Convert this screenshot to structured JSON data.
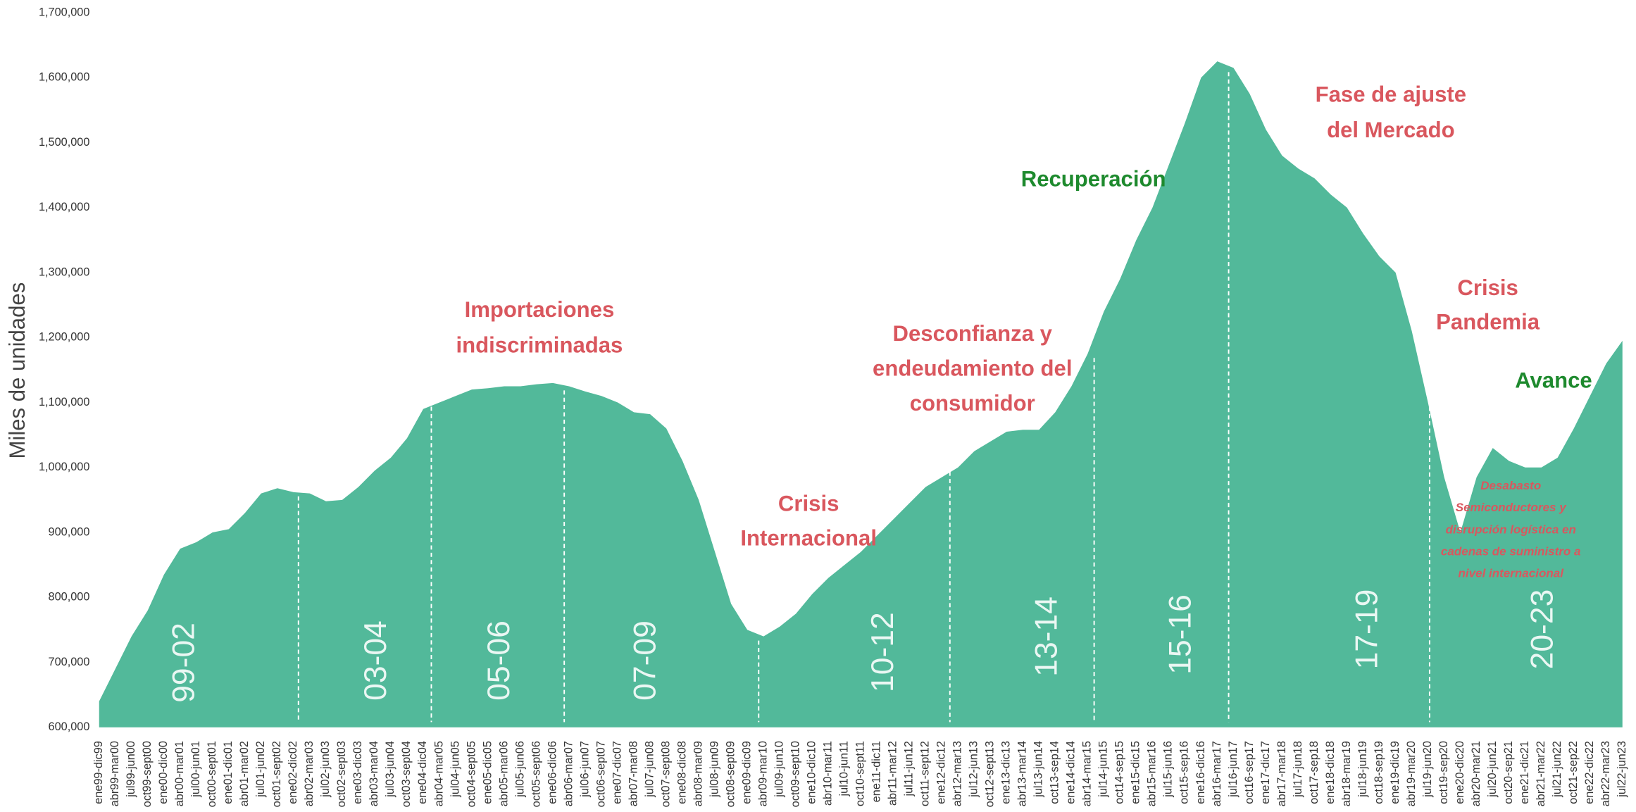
{
  "chart_data": {
    "type": "area",
    "y_label": "Miles de unidades",
    "color": "#52b99a",
    "categories": [
      "ene99-dic99",
      "abr99-mar00",
      "jul99-jun00",
      "oct99-sept00",
      "ene00-dic00",
      "abr00-mar01",
      "jul00-jun01",
      "oct00-sept01",
      "ene01-dic01",
      "abr01-mar02",
      "jul01-jun02",
      "oct01-sept02",
      "ene02-dic02",
      "abr02-mar03",
      "jul02-jun03",
      "oct02-sept03",
      "ene03-dic03",
      "abr03-mar04",
      "jul03-jun04",
      "oct03-sept04",
      "ene04-dic04",
      "abr04-mar05",
      "jul04-jun05",
      "oct04-sept05",
      "ene05-dic05",
      "abr05-mar06",
      "jul05-jun06",
      "oct05-sept06",
      "ene06-dic06",
      "abr06-mar07",
      "jul06-jun07",
      "oct06-sept07",
      "ene07-dic07",
      "abr07-mar08",
      "jul07-jun08",
      "oct07-sept08",
      "ene08-dic08",
      "abr08-mar09",
      "jul08-jun09",
      "oct08-sept09",
      "ene09-dic09",
      "abr09-mar10",
      "jul09-jun10",
      "oct09-sept10",
      "ene10-dic10",
      "abr10-mar11",
      "jul10-jun11",
      "oct10-sept11",
      "ene11-dic11",
      "abr11-mar12",
      "jul11-jun12",
      "oct11-sept12",
      "ene12-dic12",
      "abr12-mar13",
      "jul12-jun13",
      "oct12-sept13",
      "ene13-dic13",
      "abr13-mar14",
      "jul13-jun14",
      "oct13-sep14",
      "ene14-dic14",
      "abr14-mar15",
      "jul14-jun15",
      "oct14-sep15",
      "ene15-dic15",
      "abr15-mar16",
      "jul15-jun16",
      "oct15-sep16",
      "ene16-dic16",
      "abr16-mar17",
      "jul16-jun17",
      "oct16-sep17",
      "ene17-dic17",
      "abr17-mar18",
      "jul17-jun18",
      "oct17-sep18",
      "ene18-dic18",
      "abr18-mar19",
      "jul18-jun19",
      "oct18-sep19",
      "ene19-dic19",
      "abr19-mar20",
      "jul19-jun20",
      "oct19-sep20",
      "ene20-dic20",
      "abr20-mar21",
      "jul20-jun21",
      "oct20-sep21",
      "ene21-dic21",
      "abr21-mar22",
      "jul21-jun22",
      "oct21-sep22",
      "ene22-dic22",
      "abr22-mar23",
      "jul22-jun23"
    ],
    "values": [
      640000,
      690000,
      740000,
      780000,
      835000,
      875000,
      885000,
      900000,
      905000,
      930000,
      960000,
      968000,
      962000,
      960000,
      948000,
      950000,
      970000,
      995000,
      1015000,
      1045000,
      1090000,
      1100000,
      1110000,
      1120000,
      1122000,
      1125000,
      1125000,
      1128000,
      1130000,
      1125000,
      1117000,
      1110000,
      1100000,
      1085000,
      1082000,
      1060000,
      1010000,
      950000,
      870000,
      790000,
      750000,
      740000,
      755000,
      775000,
      805000,
      830000,
      850000,
      870000,
      895000,
      920000,
      945000,
      970000,
      985000,
      1000000,
      1025000,
      1040000,
      1055000,
      1058000,
      1058000,
      1085000,
      1125000,
      1175000,
      1240000,
      1290000,
      1350000,
      1400000,
      1465000,
      1530000,
      1600000,
      1625000,
      1615000,
      1575000,
      1520000,
      1480000,
      1460000,
      1445000,
      1420000,
      1400000,
      1360000,
      1325000,
      1300000,
      1210000,
      1100000,
      985000,
      900000,
      985000,
      1030000,
      1010000,
      1000000,
      1000000,
      1015000,
      1060000,
      1110000,
      1160000,
      1195000
    ],
    "ylim": [
      600000,
      1700000
    ],
    "yticks": [
      {
        "value": 600000,
        "label": "600,000"
      },
      {
        "value": 700000,
        "label": "700,000"
      },
      {
        "value": 800000,
        "label": "800,000"
      },
      {
        "value": 900000,
        "label": "900,000"
      },
      {
        "value": 1000000,
        "label": "1,000,000"
      },
      {
        "value": 1100000,
        "label": "1,100,000"
      },
      {
        "value": 1200000,
        "label": "1,200,000"
      },
      {
        "value": 1300000,
        "label": "1,300,000"
      },
      {
        "value": 1400000,
        "label": "1,400,000"
      },
      {
        "value": 1500000,
        "label": "1,500,000"
      },
      {
        "value": 1600000,
        "label": "1,600,000"
      },
      {
        "value": 1700000,
        "label": "1,700,000"
      }
    ],
    "periods": [
      "99-02",
      "03-04",
      "05-06",
      "07-09",
      "10-12",
      "13-14",
      "15-16",
      "17-19",
      "20-23"
    ],
    "annotations": [
      {
        "text": [
          "Importaciones",
          "indiscriminadas"
        ],
        "color": "#d9575e"
      },
      {
        "text": [
          "Crisis",
          "Internacional"
        ],
        "color": "#d9575e"
      },
      {
        "text": [
          "Desconfianza y",
          "endeudamiento del",
          "consumidor"
        ],
        "color": "#d9575e"
      },
      {
        "text": [
          "Recuperación"
        ],
        "color": "#1e8a2e"
      },
      {
        "text": [
          "Fase de ajuste",
          "del Mercado"
        ],
        "color": "#d9575e"
      },
      {
        "text": [
          "Crisis",
          "Pandemia"
        ],
        "color": "#d9575e"
      },
      {
        "text": [
          "Avance"
        ],
        "color": "#1e8a2e"
      },
      {
        "text": [
          "Desabasto",
          "Semiconductores y",
          "disrupción logística en",
          "cadenas de suministro a",
          "nivel internacional"
        ],
        "color": "#d9575e"
      }
    ]
  }
}
